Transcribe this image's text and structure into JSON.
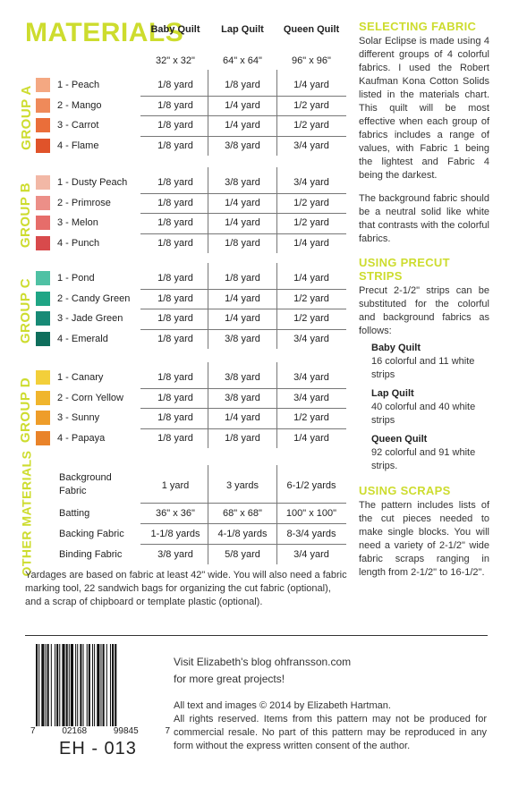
{
  "title": "MATERIALS",
  "columns": [
    {
      "name": "Baby Quilt",
      "size": "32\" x 32\""
    },
    {
      "name": "Lap Quilt",
      "size": "64\" x 64\""
    },
    {
      "name": "Queen Quilt",
      "size": "96\" x 96\""
    }
  ],
  "groups": [
    {
      "label": "GROUP A",
      "fabrics": [
        {
          "name": "1 - Peach",
          "color": "#f4a882",
          "baby": "1/8 yard",
          "lap": "1/8 yard",
          "queen": "1/4 yard"
        },
        {
          "name": "2 - Mango",
          "color": "#ef8a5a",
          "baby": "1/8 yard",
          "lap": "1/4 yard",
          "queen": "1/2 yard"
        },
        {
          "name": "3 - Carrot",
          "color": "#ea6e3a",
          "baby": "1/8 yard",
          "lap": "1/4 yard",
          "queen": "1/2 yard"
        },
        {
          "name": "4 - Flame",
          "color": "#e0532a",
          "baby": "1/8 yard",
          "lap": "3/8 yard",
          "queen": "3/4 yard"
        }
      ]
    },
    {
      "label": "GROUP B",
      "fabrics": [
        {
          "name": "1 - Dusty Peach",
          "color": "#f2b8a6",
          "baby": "1/8 yard",
          "lap": "3/8 yard",
          "queen": "3/4 yard"
        },
        {
          "name": "2 - Primrose",
          "color": "#ec8f88",
          "baby": "1/8 yard",
          "lap": "1/4 yard",
          "queen": "1/2 yard"
        },
        {
          "name": "3 - Melon",
          "color": "#e66d6a",
          "baby": "1/8 yard",
          "lap": "1/4 yard",
          "queen": "1/2 yard"
        },
        {
          "name": "4 - Punch",
          "color": "#d84a4c",
          "baby": "1/8 yard",
          "lap": "1/8 yard",
          "queen": "1/4 yard"
        }
      ]
    },
    {
      "label": "GROUP C",
      "fabrics": [
        {
          "name": "1 - Pond",
          "color": "#4fc1a4",
          "baby": "1/8 yard",
          "lap": "1/8 yard",
          "queen": "1/4 yard"
        },
        {
          "name": "2 - Candy Green",
          "color": "#1fa585",
          "baby": "1/8 yard",
          "lap": "1/4 yard",
          "queen": "1/2 yard"
        },
        {
          "name": "3 - Jade Green",
          "color": "#178a76",
          "baby": "1/8 yard",
          "lap": "1/4 yard",
          "queen": "1/2 yard"
        },
        {
          "name": "4 - Emerald",
          "color": "#0f6e5c",
          "baby": "1/8 yard",
          "lap": "3/8 yard",
          "queen": "3/4 yard"
        }
      ]
    },
    {
      "label": "GROUP D",
      "fabrics": [
        {
          "name": "1 - Canary",
          "color": "#f3cf3a",
          "baby": "1/8 yard",
          "lap": "3/8 yard",
          "queen": "3/4 yard"
        },
        {
          "name": "2 - Corn Yellow",
          "color": "#f0b52d",
          "baby": "1/8 yard",
          "lap": "3/8 yard",
          "queen": "3/4 yard"
        },
        {
          "name": "3 - Sunny",
          "color": "#ee9d2a",
          "baby": "1/8 yard",
          "lap": "1/4 yard",
          "queen": "1/2 yard"
        },
        {
          "name": "4 - Papaya",
          "color": "#e9832a",
          "baby": "1/8 yard",
          "lap": "1/8 yard",
          "queen": "1/4 yard"
        }
      ]
    }
  ],
  "other": {
    "label": "OTHER MATERIALS",
    "rows": [
      {
        "name": "Background Fabric",
        "baby": "1 yard",
        "lap": "3 yards",
        "queen": "6-1/2 yards"
      },
      {
        "name": "Batting",
        "baby": "36\" x 36\"",
        "lap": "68\" x 68\"",
        "queen": "100\" x 100\""
      },
      {
        "name": "Backing Fabric",
        "baby": "1-1/8 yards",
        "lap": "4-1/8 yards",
        "queen": "8-3/4 yards"
      },
      {
        "name": "Binding Fabric",
        "baby": "3/8 yard",
        "lap": "5/8 yard",
        "queen": "3/4 yard"
      }
    ]
  },
  "footnote": "Yardages are based on fabric at least 42\" wide. You will also need a fabric marking tool, 22 sandwich bags for organizing the cut fabric (optional), and a scrap of chipboard or template plastic (optional).",
  "sidebar": {
    "selecting": {
      "heading": "SELECTING FABRIC",
      "p1": "Solar Eclipse is made using 4 different groups of 4 colorful fabrics. I used the Robert Kaufman Kona Cotton Solids listed in the materials chart. This quilt will be most effective when each group of fabrics includes a range of values, with Fabric 1 being the lightest and Fabric 4 being the darkest.",
      "p2": "The background fabric should be a neutral solid like white that contrasts with the colorful fabrics."
    },
    "precut": {
      "heading": "USING PRECUT STRIPS",
      "intro": "Precut 2-1/2\" strips can be substituted for the colorful and background fabrics as follows:",
      "items": [
        {
          "name": "Baby Quilt",
          "text": "16 colorful and 11 white strips"
        },
        {
          "name": "Lap Quilt",
          "text": "40 colorful and 40 white strips"
        },
        {
          "name": "Queen Quilt",
          "text": "92 colorful and 91 white strips."
        }
      ]
    },
    "scraps": {
      "heading": "USING SCRAPS",
      "text": "The pattern includes lists of the cut pieces needed to make single blocks. You will need a variety of 2-1/2\" wide fabric scraps ranging in length from 2-1/2\" to 16-1/2\"."
    }
  },
  "footer": {
    "blog_line1": "Visit Elizabeth's blog ohfransson.com",
    "blog_line2": "for more great projects!",
    "copyright": "All text and images © 2014 by Elizabeth Hartman.",
    "rights": "All rights reserved. Items from this pattern may not be produced for commercial resale. No part of this pattern may be reproduced in any form without the express written consent of the author.",
    "barcode_digits": [
      "7",
      "02168",
      "99845",
      "7"
    ],
    "sku": "EH - 013"
  }
}
